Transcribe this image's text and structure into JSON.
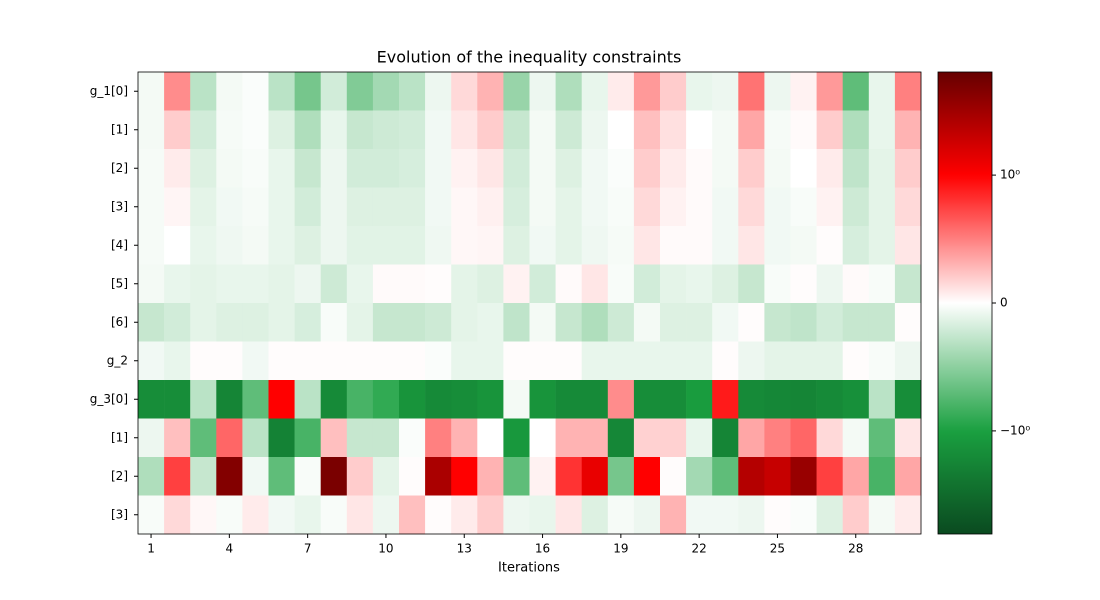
{
  "chart_data": {
    "type": "heatmap",
    "title": "Evolution of the inequality constraints",
    "x_label": "Iterations",
    "x": [
      1,
      2,
      3,
      4,
      5,
      6,
      7,
      8,
      9,
      10,
      11,
      12,
      13,
      14,
      15,
      16,
      17,
      18,
      19,
      20,
      21,
      22,
      23,
      24,
      25,
      26,
      27,
      28,
      29,
      30
    ],
    "xlim": [
      0.5,
      30.5
    ],
    "xticks": [
      1,
      4,
      7,
      10,
      13,
      16,
      19,
      22,
      25,
      28
    ],
    "rows": [
      "g_1[0]",
      "[1]",
      "[2]",
      "[3]",
      "[4]",
      "[5]",
      "[6]",
      "g_2",
      "g_3[0]",
      "[1]",
      "[2]",
      "[3]"
    ],
    "z": [
      [
        -0.05,
        0.45,
        -0.3,
        -0.05,
        -0.02,
        -0.3,
        -0.6,
        -0.2,
        -0.55,
        -0.4,
        -0.3,
        -0.08,
        0.15,
        0.3,
        -0.45,
        -0.08,
        -0.35,
        -0.1,
        0.08,
        0.4,
        0.2,
        -0.1,
        -0.08,
        0.55,
        -0.08,
        0.05,
        0.4,
        -0.7,
        -0.1,
        0.5
      ],
      [
        -0.05,
        0.2,
        -0.2,
        -0.04,
        -0.02,
        -0.15,
        -0.35,
        -0.1,
        -0.25,
        -0.22,
        -0.2,
        -0.06,
        0.1,
        0.2,
        -0.25,
        -0.05,
        -0.22,
        -0.08,
        0.0,
        0.25,
        0.12,
        0.0,
        -0.05,
        0.35,
        -0.04,
        0.02,
        0.2,
        -0.35,
        -0.1,
        0.3
      ],
      [
        -0.04,
        0.08,
        -0.15,
        -0.05,
        -0.03,
        -0.1,
        -0.25,
        -0.08,
        -0.2,
        -0.2,
        -0.18,
        -0.06,
        0.05,
        0.1,
        -0.2,
        -0.05,
        -0.15,
        -0.06,
        -0.02,
        0.2,
        0.08,
        0.02,
        -0.05,
        0.2,
        -0.05,
        0.0,
        0.08,
        -0.28,
        -0.12,
        0.2
      ],
      [
        -0.04,
        0.04,
        -0.12,
        -0.06,
        -0.04,
        -0.1,
        -0.2,
        -0.08,
        -0.15,
        -0.15,
        -0.15,
        -0.06,
        0.03,
        0.06,
        -0.18,
        -0.05,
        -0.12,
        -0.06,
        -0.03,
        0.15,
        0.05,
        0.02,
        -0.06,
        0.15,
        -0.06,
        -0.03,
        0.05,
        -0.22,
        -0.12,
        0.15
      ],
      [
        -0.04,
        0.0,
        -0.1,
        -0.07,
        -0.05,
        -0.1,
        -0.15,
        -0.08,
        -0.13,
        -0.13,
        -0.13,
        -0.07,
        0.03,
        0.04,
        -0.15,
        -0.06,
        -0.12,
        -0.07,
        -0.04,
        0.1,
        0.02,
        0.02,
        -0.06,
        0.1,
        -0.06,
        -0.05,
        0.01,
        -0.18,
        -0.12,
        0.1
      ],
      [
        -0.05,
        -0.1,
        -0.12,
        -0.1,
        -0.1,
        -0.12,
        -0.08,
        -0.22,
        -0.1,
        0.02,
        0.02,
        0.01,
        -0.12,
        -0.15,
        0.05,
        -0.2,
        0.02,
        0.1,
        -0.03,
        -0.2,
        -0.12,
        -0.1,
        -0.15,
        -0.25,
        -0.03,
        0.01,
        -0.08,
        0.02,
        -0.03,
        -0.25
      ],
      [
        -0.25,
        -0.2,
        -0.12,
        -0.15,
        -0.15,
        -0.12,
        -0.18,
        -0.03,
        -0.12,
        -0.25,
        -0.25,
        -0.22,
        -0.12,
        -0.1,
        -0.28,
        -0.05,
        -0.25,
        -0.35,
        -0.22,
        -0.05,
        -0.15,
        -0.15,
        -0.06,
        0.01,
        -0.25,
        -0.28,
        -0.2,
        -0.25,
        -0.25,
        0.01
      ],
      [
        -0.06,
        -0.1,
        0.01,
        0.01,
        -0.06,
        0.01,
        0.01,
        0.01,
        0.01,
        0.01,
        0.01,
        -0.02,
        -0.1,
        -0.1,
        0.01,
        0.01,
        0.01,
        -0.1,
        -0.1,
        -0.1,
        -0.1,
        -0.1,
        0.01,
        -0.08,
        -0.12,
        -0.12,
        -0.12,
        0.01,
        -0.03,
        -0.08
      ],
      [
        -1.5,
        -1.5,
        -0.3,
        -1.8,
        -0.7,
        1.0,
        -0.3,
        -1.6,
        -0.8,
        -0.9,
        -1.3,
        -1.6,
        -1.5,
        -1.3,
        -0.05,
        -1.3,
        -1.6,
        -1.6,
        0.45,
        -1.5,
        -1.5,
        -1.1,
        0.9,
        -1.6,
        -1.7,
        -1.8,
        -1.6,
        -1.4,
        -0.3,
        -1.5
      ],
      [
        -0.08,
        0.25,
        -0.7,
        0.6,
        -0.3,
        -1.9,
        -0.8,
        0.25,
        -0.25,
        -0.25,
        -0.02,
        0.5,
        0.3,
        0.0,
        -1.2,
        0.0,
        0.3,
        0.3,
        -1.7,
        0.18,
        0.18,
        -0.1,
        -1.8,
        0.35,
        0.5,
        0.6,
        0.15,
        -0.05,
        -0.7,
        0.1
      ],
      [
        -0.35,
        0.75,
        -0.25,
        4.5,
        -0.06,
        -0.7,
        -0.03,
        5.0,
        0.2,
        -0.12,
        0.01,
        2.8,
        1.0,
        0.3,
        -0.7,
        0.05,
        0.8,
        1.3,
        -0.6,
        1.0,
        0.01,
        -0.4,
        -0.7,
        2.5,
        2.0,
        3.5,
        0.75,
        0.35,
        -0.8,
        0.35
      ],
      [
        -0.03,
        0.15,
        0.03,
        -0.03,
        0.08,
        -0.06,
        -0.1,
        -0.03,
        0.1,
        -0.08,
        0.25,
        0.01,
        0.08,
        0.2,
        -0.08,
        -0.1,
        0.1,
        -0.15,
        -0.04,
        -0.08,
        0.3,
        -0.06,
        -0.06,
        -0.08,
        0.01,
        -0.02,
        -0.15,
        0.2,
        -0.05,
        0.08
      ]
    ],
    "color_scale": "symlog",
    "linthresh": 1,
    "clim": [
      -6.4,
      6.4
    ],
    "colorbar_ticks": [
      {
        "value": -1,
        "label": "−10⁰"
      },
      0,
      {
        "value": 1,
        "label": "10⁰"
      }
    ],
    "colormap": [
      "#0a4a20",
      "#1aa040",
      "#ffffff",
      "#ff0000",
      "#660000"
    ]
  }
}
